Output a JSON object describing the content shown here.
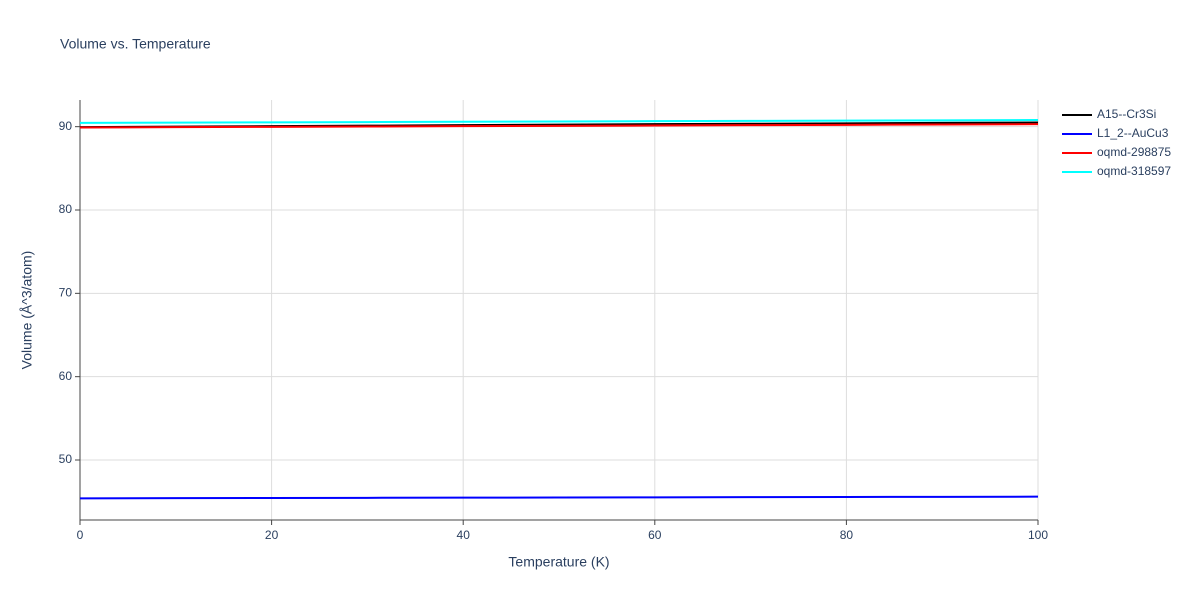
{
  "chart_data": {
    "type": "line",
    "title": "Volume vs. Temperature",
    "x_label": "Temperature (K)",
    "y_label": "Volume (Å^3/atom)",
    "x": [
      0,
      10,
      20,
      30,
      40,
      50,
      60,
      70,
      80,
      90,
      100
    ],
    "series": [
      {
        "name": "A15--Cr3Si",
        "color": "#000000",
        "values": [
          89.95,
          90.0,
          90.06,
          90.12,
          90.18,
          90.24,
          90.3,
          90.35,
          90.4,
          90.45,
          90.5
        ]
      },
      {
        "name": "L1_2--AuCu3",
        "color": "#0000ff",
        "values": [
          45.4,
          45.42,
          45.44,
          45.46,
          45.48,
          45.5,
          45.52,
          45.54,
          45.56,
          45.58,
          45.6
        ]
      },
      {
        "name": "oqmd-298875",
        "color": "#ff0000",
        "values": [
          89.9,
          89.94,
          89.98,
          90.02,
          90.06,
          90.1,
          90.14,
          90.18,
          90.22,
          90.26,
          90.3
        ]
      },
      {
        "name": "oqmd-318597",
        "color": "#00ffff",
        "values": [
          90.45,
          90.48,
          90.52,
          90.55,
          90.59,
          90.62,
          90.66,
          90.69,
          90.73,
          90.76,
          90.8
        ]
      }
    ],
    "xlim": [
      0,
      100
    ],
    "xticks": [
      0,
      20,
      40,
      60,
      80,
      100
    ],
    "ylim": [
      42.8,
      93.2
    ],
    "yticks": [
      50,
      60,
      70,
      80,
      90
    ],
    "grid": true
  }
}
